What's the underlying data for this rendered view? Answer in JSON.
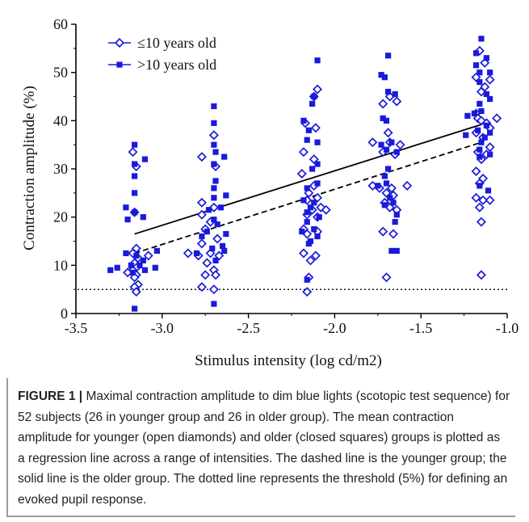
{
  "chart_data": {
    "type": "scatter",
    "xlabel": "Stimulus intensity (log cd/m2)",
    "ylabel": "Contraction amplitude (%)",
    "xlim": [
      -3.5,
      -1.0
    ],
    "ylim": [
      0,
      60
    ],
    "x_ticks": [
      "-3.5",
      "-3.0",
      "-2.5",
      "-2.0",
      "-1.5",
      "-1.0"
    ],
    "y_ticks": [
      "0",
      "10",
      "20",
      "30",
      "40",
      "50",
      "60"
    ],
    "legend_position": "top-left",
    "grid": false,
    "color": "#1a1adb",
    "series": [
      {
        "name": "≤10 years old",
        "marker": "open-diamond",
        "points": [
          [
            -3.17,
            33.5
          ],
          [
            -3.15,
            30.5
          ],
          [
            -3.16,
            21.0
          ],
          [
            -3.15,
            13.5
          ],
          [
            -3.17,
            12.5
          ],
          [
            -3.14,
            11.5
          ],
          [
            -3.16,
            10.5
          ],
          [
            -3.15,
            9.5
          ],
          [
            -3.17,
            9.0
          ],
          [
            -3.15,
            8.0
          ],
          [
            -3.16,
            7.5
          ],
          [
            -3.14,
            6.0
          ],
          [
            -3.16,
            5.5
          ],
          [
            -3.15,
            4.5
          ],
          [
            -3.08,
            12.0
          ],
          [
            -3.2,
            8.5
          ],
          [
            -2.77,
            32.5
          ],
          [
            -2.7,
            37.0
          ],
          [
            -2.69,
            30.5
          ],
          [
            -2.77,
            23.0
          ],
          [
            -2.7,
            22.0
          ],
          [
            -2.77,
            20.5
          ],
          [
            -2.72,
            19.0
          ],
          [
            -2.75,
            17.5
          ],
          [
            -2.77,
            14.5
          ],
          [
            -2.68,
            15.5
          ],
          [
            -2.85,
            12.5
          ],
          [
            -2.72,
            12.5
          ],
          [
            -2.67,
            12.0
          ],
          [
            -2.79,
            12.0
          ],
          [
            -2.74,
            10.5
          ],
          [
            -2.7,
            9.0
          ],
          [
            -2.75,
            8.0
          ],
          [
            -2.69,
            8.0
          ],
          [
            -2.77,
            5.5
          ],
          [
            -2.7,
            5.0
          ],
          [
            -2.1,
            46.5
          ],
          [
            -2.12,
            45.0
          ],
          [
            -2.17,
            39.5
          ],
          [
            -2.11,
            38.5
          ],
          [
            -2.18,
            33.5
          ],
          [
            -2.12,
            32.0
          ],
          [
            -2.19,
            29.0
          ],
          [
            -2.12,
            26.5
          ],
          [
            -2.15,
            25.0
          ],
          [
            -2.1,
            24.0
          ],
          [
            -2.16,
            23.5
          ],
          [
            -2.08,
            22.0
          ],
          [
            -2.13,
            21.5
          ],
          [
            -2.05,
            21.5
          ],
          [
            -2.16,
            20.5
          ],
          [
            -2.1,
            20.0
          ],
          [
            -2.18,
            17.5
          ],
          [
            -2.1,
            17.0
          ],
          [
            -2.16,
            16.5
          ],
          [
            -2.18,
            12.5
          ],
          [
            -2.11,
            12.0
          ],
          [
            -2.14,
            11.0
          ],
          [
            -2.15,
            7.5
          ],
          [
            -2.16,
            4.5
          ],
          [
            -1.68,
            45.0
          ],
          [
            -1.64,
            44.0
          ],
          [
            -1.72,
            43.5
          ],
          [
            -1.69,
            37.5
          ],
          [
            -1.68,
            35.5
          ],
          [
            -1.78,
            35.5
          ],
          [
            -1.62,
            35.0
          ],
          [
            -1.72,
            33.5
          ],
          [
            -1.65,
            33.0
          ],
          [
            -1.58,
            26.5
          ],
          [
            -1.67,
            26.0
          ],
          [
            -1.78,
            26.5
          ],
          [
            -1.74,
            26.0
          ],
          [
            -1.7,
            25.0
          ],
          [
            -1.66,
            24.5
          ],
          [
            -1.71,
            23.0
          ],
          [
            -1.68,
            22.0
          ],
          [
            -1.64,
            21.5
          ],
          [
            -1.72,
            17.0
          ],
          [
            -1.66,
            16.5
          ],
          [
            -1.7,
            7.5
          ],
          [
            -1.16,
            54.5
          ],
          [
            -1.13,
            52.0
          ],
          [
            -1.18,
            49.0
          ],
          [
            -1.1,
            48.5
          ],
          [
            -1.13,
            47.0
          ],
          [
            -1.15,
            46.0
          ],
          [
            -1.18,
            41.5
          ],
          [
            -1.17,
            40.5
          ],
          [
            -1.15,
            40.0
          ],
          [
            -1.06,
            40.5
          ],
          [
            -1.12,
            39.5
          ],
          [
            -1.1,
            38.5
          ],
          [
            -1.18,
            37.5
          ],
          [
            -1.14,
            36.5
          ],
          [
            -1.1,
            34.5
          ],
          [
            -1.17,
            33.5
          ],
          [
            -1.12,
            33.0
          ],
          [
            -1.15,
            32.0
          ],
          [
            -1.18,
            29.5
          ],
          [
            -1.14,
            28.0
          ],
          [
            -1.16,
            27.0
          ],
          [
            -1.18,
            24.0
          ],
          [
            -1.14,
            23.5
          ],
          [
            -1.1,
            23.5
          ],
          [
            -1.16,
            22.0
          ],
          [
            -1.15,
            19.0
          ],
          [
            -1.15,
            8.0
          ]
        ]
      },
      {
        "name": ">10 years old",
        "marker": "filled-square",
        "points": [
          [
            -3.16,
            35.0
          ],
          [
            -3.1,
            32.0
          ],
          [
            -3.16,
            31.0
          ],
          [
            -3.16,
            28.5
          ],
          [
            -3.16,
            25.0
          ],
          [
            -3.21,
            22.0
          ],
          [
            -3.16,
            21.0
          ],
          [
            -3.11,
            20.0
          ],
          [
            -3.2,
            19.5
          ],
          [
            -3.03,
            13.0
          ],
          [
            -3.21,
            12.5
          ],
          [
            -3.15,
            12.0
          ],
          [
            -3.11,
            11.0
          ],
          [
            -3.18,
            10.0
          ],
          [
            -3.13,
            10.0
          ],
          [
            -3.04,
            9.5
          ],
          [
            -3.26,
            9.5
          ],
          [
            -3.3,
            9.0
          ],
          [
            -3.1,
            9.0
          ],
          [
            -3.17,
            8.5
          ],
          [
            -3.16,
            1.0
          ],
          [
            -2.7,
            43.0
          ],
          [
            -2.7,
            39.5
          ],
          [
            -2.7,
            35.0
          ],
          [
            -2.69,
            33.5
          ],
          [
            -2.64,
            32.5
          ],
          [
            -2.7,
            31.0
          ],
          [
            -2.69,
            27.5
          ],
          [
            -2.7,
            26.0
          ],
          [
            -2.63,
            24.5
          ],
          [
            -2.7,
            24.0
          ],
          [
            -2.66,
            22.0
          ],
          [
            -2.73,
            21.5
          ],
          [
            -2.7,
            19.5
          ],
          [
            -2.68,
            18.5
          ],
          [
            -2.74,
            17.0
          ],
          [
            -2.63,
            16.5
          ],
          [
            -2.77,
            16.0
          ],
          [
            -2.65,
            14.0
          ],
          [
            -2.71,
            13.5
          ],
          [
            -2.64,
            13.0
          ],
          [
            -2.8,
            12.5
          ],
          [
            -2.69,
            11.0
          ],
          [
            -2.7,
            2.0
          ],
          [
            -2.1,
            52.5
          ],
          [
            -2.12,
            45.0
          ],
          [
            -2.13,
            43.5
          ],
          [
            -2.18,
            40.0
          ],
          [
            -2.15,
            38.0
          ],
          [
            -2.16,
            36.0
          ],
          [
            -2.1,
            35.5
          ],
          [
            -2.1,
            31.0
          ],
          [
            -2.13,
            30.0
          ],
          [
            -2.1,
            27.0
          ],
          [
            -2.16,
            26.0
          ],
          [
            -2.18,
            23.5
          ],
          [
            -2.12,
            23.0
          ],
          [
            -2.14,
            22.0
          ],
          [
            -2.16,
            21.0
          ],
          [
            -2.09,
            20.0
          ],
          [
            -2.16,
            19.0
          ],
          [
            -2.12,
            17.5
          ],
          [
            -2.19,
            17.0
          ],
          [
            -2.1,
            16.0
          ],
          [
            -2.14,
            15.0
          ],
          [
            -2.15,
            14.5
          ],
          [
            -2.16,
            7.0
          ],
          [
            -1.69,
            53.5
          ],
          [
            -1.73,
            49.5
          ],
          [
            -1.71,
            49.0
          ],
          [
            -1.69,
            46.0
          ],
          [
            -1.65,
            45.5
          ],
          [
            -1.72,
            40.5
          ],
          [
            -1.7,
            40.0
          ],
          [
            -1.67,
            35.5
          ],
          [
            -1.73,
            35.0
          ],
          [
            -1.7,
            34.0
          ],
          [
            -1.64,
            33.5
          ],
          [
            -1.69,
            30.0
          ],
          [
            -1.71,
            28.5
          ],
          [
            -1.7,
            27.0
          ],
          [
            -1.75,
            26.5
          ],
          [
            -1.68,
            24.0
          ],
          [
            -1.66,
            23.0
          ],
          [
            -1.71,
            22.5
          ],
          [
            -1.64,
            20.5
          ],
          [
            -1.65,
            19.0
          ],
          [
            -1.67,
            13.0
          ],
          [
            -1.64,
            13.0
          ],
          [
            -1.15,
            57.0
          ],
          [
            -1.18,
            54.0
          ],
          [
            -1.12,
            53.0
          ],
          [
            -1.18,
            51.5
          ],
          [
            -1.16,
            50.0
          ],
          [
            -1.1,
            50.0
          ],
          [
            -1.16,
            48.0
          ],
          [
            -1.12,
            45.5
          ],
          [
            -1.1,
            44.5
          ],
          [
            -1.16,
            43.5
          ],
          [
            -1.15,
            42.0
          ],
          [
            -1.19,
            41.5
          ],
          [
            -1.23,
            41.0
          ],
          [
            -1.12,
            39.0
          ],
          [
            -1.17,
            38.0
          ],
          [
            -1.1,
            37.5
          ],
          [
            -1.24,
            37.0
          ],
          [
            -1.13,
            36.5
          ],
          [
            -1.15,
            35.5
          ],
          [
            -1.16,
            34.0
          ],
          [
            -1.1,
            33.0
          ],
          [
            -1.16,
            32.5
          ],
          [
            -1.16,
            26.5
          ],
          [
            -1.11,
            25.5
          ]
        ]
      }
    ],
    "regression_lines": [
      {
        "name": "≤10 years old",
        "style": "dashed",
        "x": [
          -3.16,
          -1.15
        ],
        "y": [
          12.5,
          35.5
        ]
      },
      {
        "name": ">10 years old",
        "style": "solid",
        "x": [
          -3.16,
          -1.15
        ],
        "y": [
          16.5,
          39.2
        ]
      }
    ],
    "threshold_line": {
      "style": "dotted",
      "y": 5,
      "x": [
        -3.5,
        -1.0
      ]
    }
  },
  "caption": {
    "label": "FIGURE 1 |",
    "text": " Maximal contraction amplitude to dim blue lights (scotopic test sequence) for 52 subjects (26 in younger group and 26 in older group). The mean contraction amplitude for younger (open diamonds) and older (closed squares) groups is plotted as a regression line across a range of intensities. The dashed line is the younger group; the solid line is the older group. The dotted line represents the threshold (5%) for defining an evoked pupil response."
  }
}
